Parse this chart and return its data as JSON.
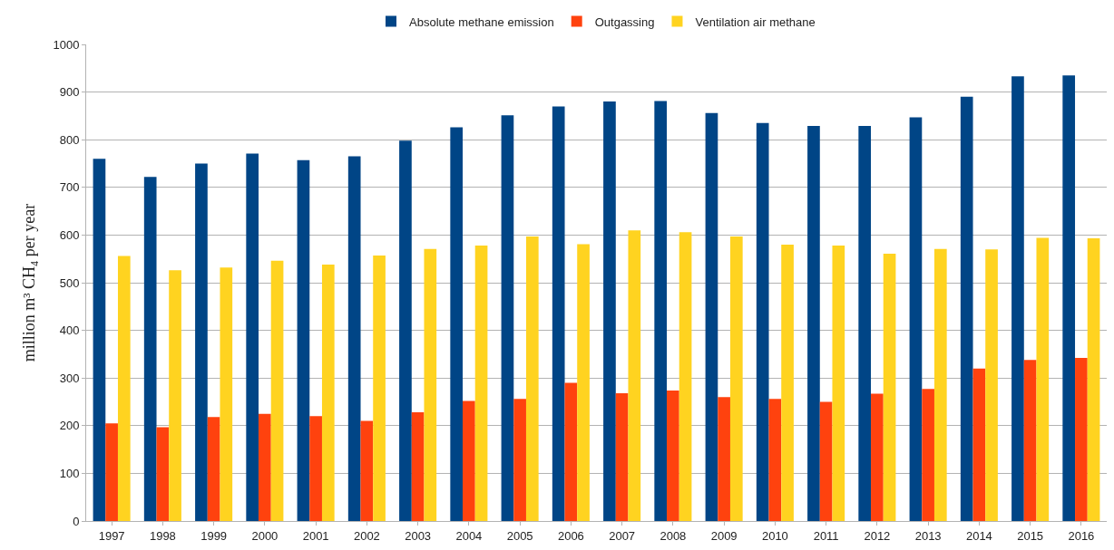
{
  "chart_data": {
    "type": "bar",
    "categories": [
      "1997",
      "1998",
      "1999",
      "2000",
      "2001",
      "2002",
      "2003",
      "2004",
      "2005",
      "2006",
      "2007",
      "2008",
      "2009",
      "2010",
      "2011",
      "2012",
      "2013",
      "2014",
      "2015",
      "2016"
    ],
    "series": [
      {
        "name": "Absolute methane emission",
        "color": "#004586",
        "values": [
          760,
          722,
          750,
          771,
          757,
          765,
          798,
          826,
          851,
          870,
          880,
          881,
          856,
          835,
          829,
          829,
          847,
          890,
          933,
          935
        ]
      },
      {
        "name": "Outgassing",
        "color": "#ff420e",
        "values": [
          205,
          197,
          218,
          225,
          220,
          210,
          228,
          252,
          256,
          290,
          268,
          274,
          260,
          256,
          250,
          267,
          277,
          320,
          338,
          342
        ]
      },
      {
        "name": "Ventilation air methane",
        "color": "#ffd320",
        "values": [
          556,
          526,
          532,
          546,
          538,
          557,
          571,
          578,
          597,
          581,
          610,
          606,
          597,
          580,
          578,
          561,
          571,
          570,
          594,
          593
        ]
      }
    ],
    "ylabel": "million m³ CH₄ per year",
    "ylim": [
      0,
      1000
    ],
    "yticks": [
      0,
      100,
      200,
      300,
      400,
      500,
      600,
      700,
      800,
      900,
      1000
    ],
    "grid": "y",
    "legend": "top"
  }
}
